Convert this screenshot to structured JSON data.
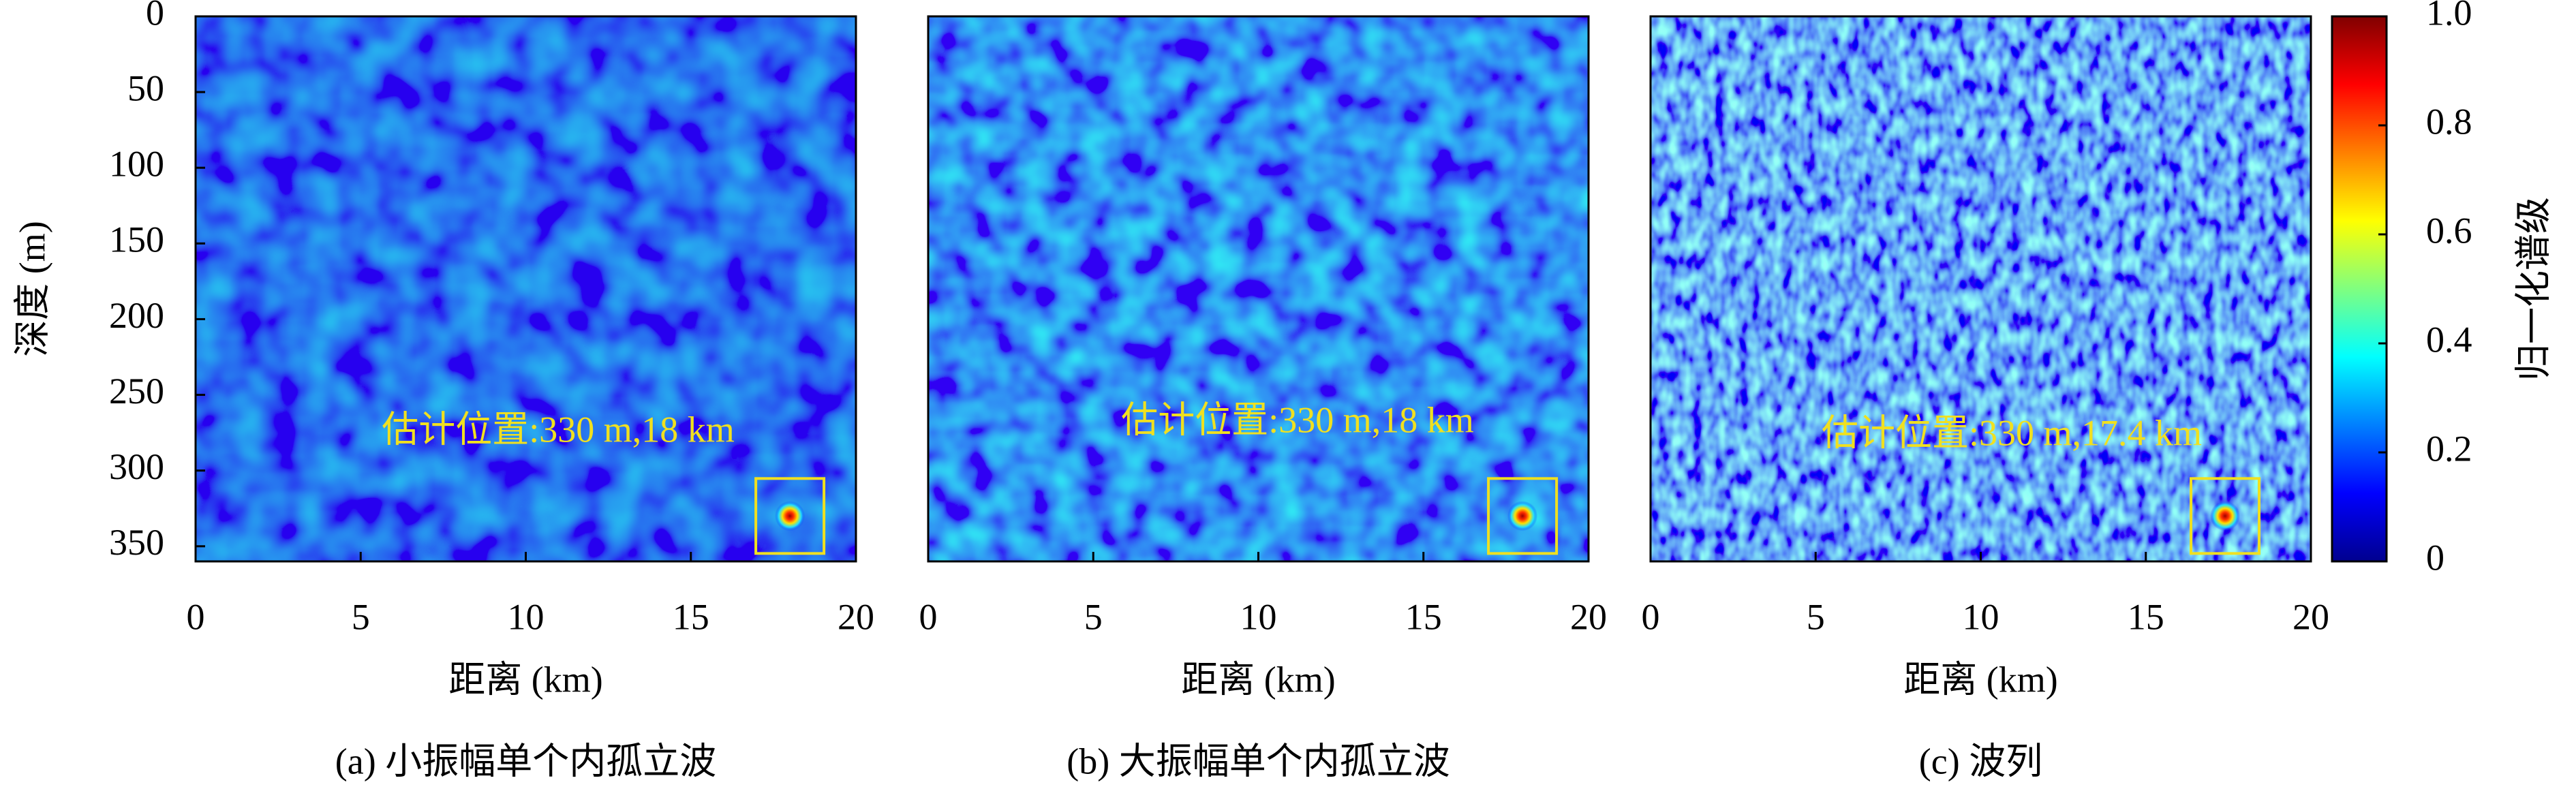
{
  "chart_data": [
    {
      "type": "heatmap",
      "caption": "(a) 小振幅单个内孤立波",
      "xlabel": "距离 (km)",
      "ylabel": "深度 (m)",
      "annotation": "估计位置:330 m,18 km",
      "peak": {
        "x": 18,
        "y": 330,
        "value": 1
      },
      "xlim": [
        0,
        20
      ],
      "ylim": [
        0,
        360
      ],
      "xticks": [
        0,
        5,
        10,
        15,
        20
      ],
      "yticks": [
        0,
        50,
        100,
        150,
        200,
        250,
        300,
        350
      ]
    },
    {
      "type": "heatmap",
      "caption": "(b) 大振幅单个内孤立波",
      "xlabel": "距离 (km)",
      "annotation": "估计位置:330 m,18 km",
      "peak": {
        "x": 18,
        "y": 330,
        "value": 1
      },
      "xlim": [
        0,
        20
      ],
      "ylim": [
        0,
        360
      ],
      "xticks": [
        0,
        5,
        10,
        15,
        20
      ]
    },
    {
      "type": "heatmap",
      "caption": "(c) 波列",
      "xlabel": "距离 (km)",
      "annotation": "估计位置:330 m,17.4 km",
      "peak": {
        "x": 17.4,
        "y": 330,
        "value": 1
      },
      "xlim": [
        0,
        20
      ],
      "ylim": [
        0,
        360
      ],
      "xticks": [
        0,
        5,
        10,
        15,
        20
      ],
      "colorbar": {
        "label": "归一化谱级",
        "lim": [
          0,
          1
        ],
        "ticks": [
          0,
          0.2,
          0.4,
          0.6,
          0.8,
          {
            "value": 1,
            "label": "1.0"
          }
        ]
      }
    }
  ]
}
